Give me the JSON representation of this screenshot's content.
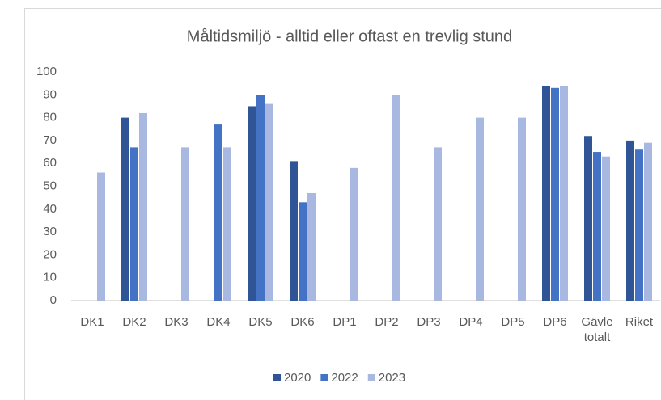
{
  "chart_data": {
    "type": "bar",
    "title": "Måltidsmiljö - alltid eller oftast en trevlig stund",
    "categories": [
      "DK1",
      "DK2",
      "DK3",
      "DK4",
      "DK5",
      "DK6",
      "DP1",
      "DP2",
      "DP3",
      "DP4",
      "DP5",
      "DP6",
      "Gävle totalt",
      "Riket"
    ],
    "series": [
      {
        "name": "2020",
        "color": "#2f5597",
        "values": [
          null,
          80,
          null,
          null,
          85,
          61,
          null,
          null,
          null,
          null,
          null,
          94,
          72,
          70
        ]
      },
      {
        "name": "2022",
        "color": "#4472c4",
        "values": [
          null,
          67,
          null,
          77,
          90,
          43,
          null,
          null,
          null,
          null,
          null,
          93,
          65,
          66
        ]
      },
      {
        "name": "2023",
        "color": "#a9b8e0",
        "values": [
          56,
          82,
          67,
          67,
          86,
          47,
          58,
          90,
          67,
          80,
          80,
          94,
          63,
          69
        ]
      }
    ],
    "ylim": [
      0,
      100
    ],
    "yticks": [
      0,
      10,
      20,
      30,
      40,
      50,
      60,
      70,
      80,
      90,
      100
    ],
    "grid": false,
    "legend": "bottom"
  }
}
